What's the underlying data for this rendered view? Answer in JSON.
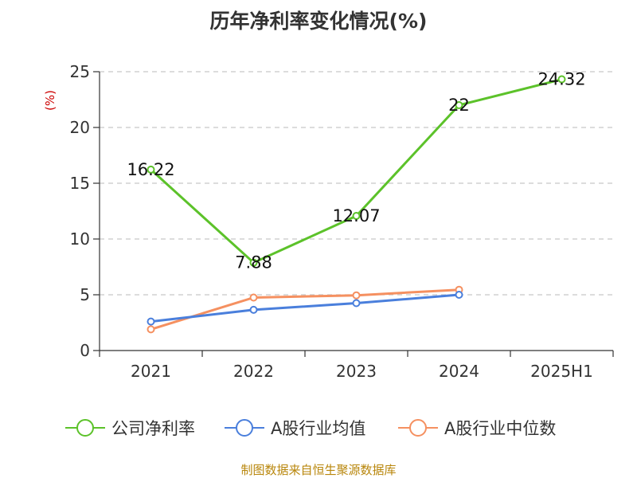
{
  "chart_data": {
    "type": "line",
    "title": "历年净利率变化情况(%)",
    "ylabel": "(%)",
    "categories": [
      "2021",
      "2022",
      "2023",
      "2024",
      "2025H1"
    ],
    "ylim": [
      0,
      25
    ],
    "yticks": [
      "0",
      "5",
      "10",
      "15",
      "20",
      "25"
    ],
    "grid": true,
    "legend_position": "bottom",
    "series": [
      {
        "name": "公司净利率",
        "values": [
          16.22,
          7.88,
          12.07,
          22,
          24.32
        ],
        "labels": [
          "16.22",
          "7.88",
          "12.07",
          "22",
          "24.32"
        ],
        "color": "#5cc22a"
      },
      {
        "name": "A股行业均值",
        "values": [
          2.6,
          3.65,
          4.25,
          5.0,
          null
        ],
        "color": "#4a7fdc"
      },
      {
        "name": "A股行业中位数",
        "values": [
          1.9,
          4.75,
          4.95,
          5.45,
          null
        ],
        "color": "#f59060"
      }
    ]
  },
  "source": "制图数据来自恒生聚源数据库"
}
